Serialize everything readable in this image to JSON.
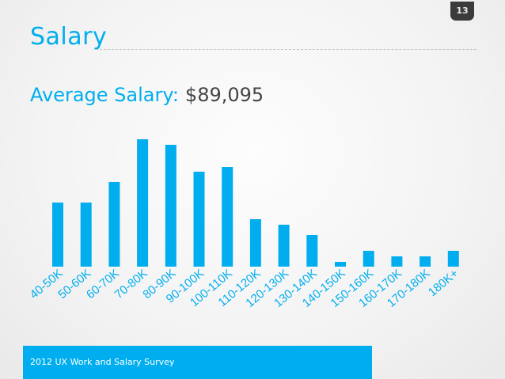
{
  "slide": {
    "page_number": "13",
    "title": "Salary",
    "average_label": "Average Salary:",
    "average_value": "$89,095",
    "footer": "2012 UX Work and Salary Survey"
  },
  "colors": {
    "accent": "#00aeef",
    "text_dark": "#444444"
  },
  "chart_data": {
    "type": "bar",
    "title": "",
    "xlabel": "",
    "ylabel": "",
    "categories": [
      "40-50K",
      "50-60K",
      "60-70K",
      "70-80K",
      "80-90K",
      "90-100K",
      "100-110K",
      "110-120K",
      "120-130K",
      "130-140K",
      "140-150K",
      "150-160K",
      "160-170K",
      "170-180K",
      "180K+"
    ],
    "values": [
      81,
      81,
      107,
      161,
      154,
      120,
      126,
      60,
      53,
      40,
      6,
      20,
      13,
      13,
      20
    ],
    "ylim": [
      0,
      161
    ],
    "grid": false,
    "legend": "none"
  }
}
